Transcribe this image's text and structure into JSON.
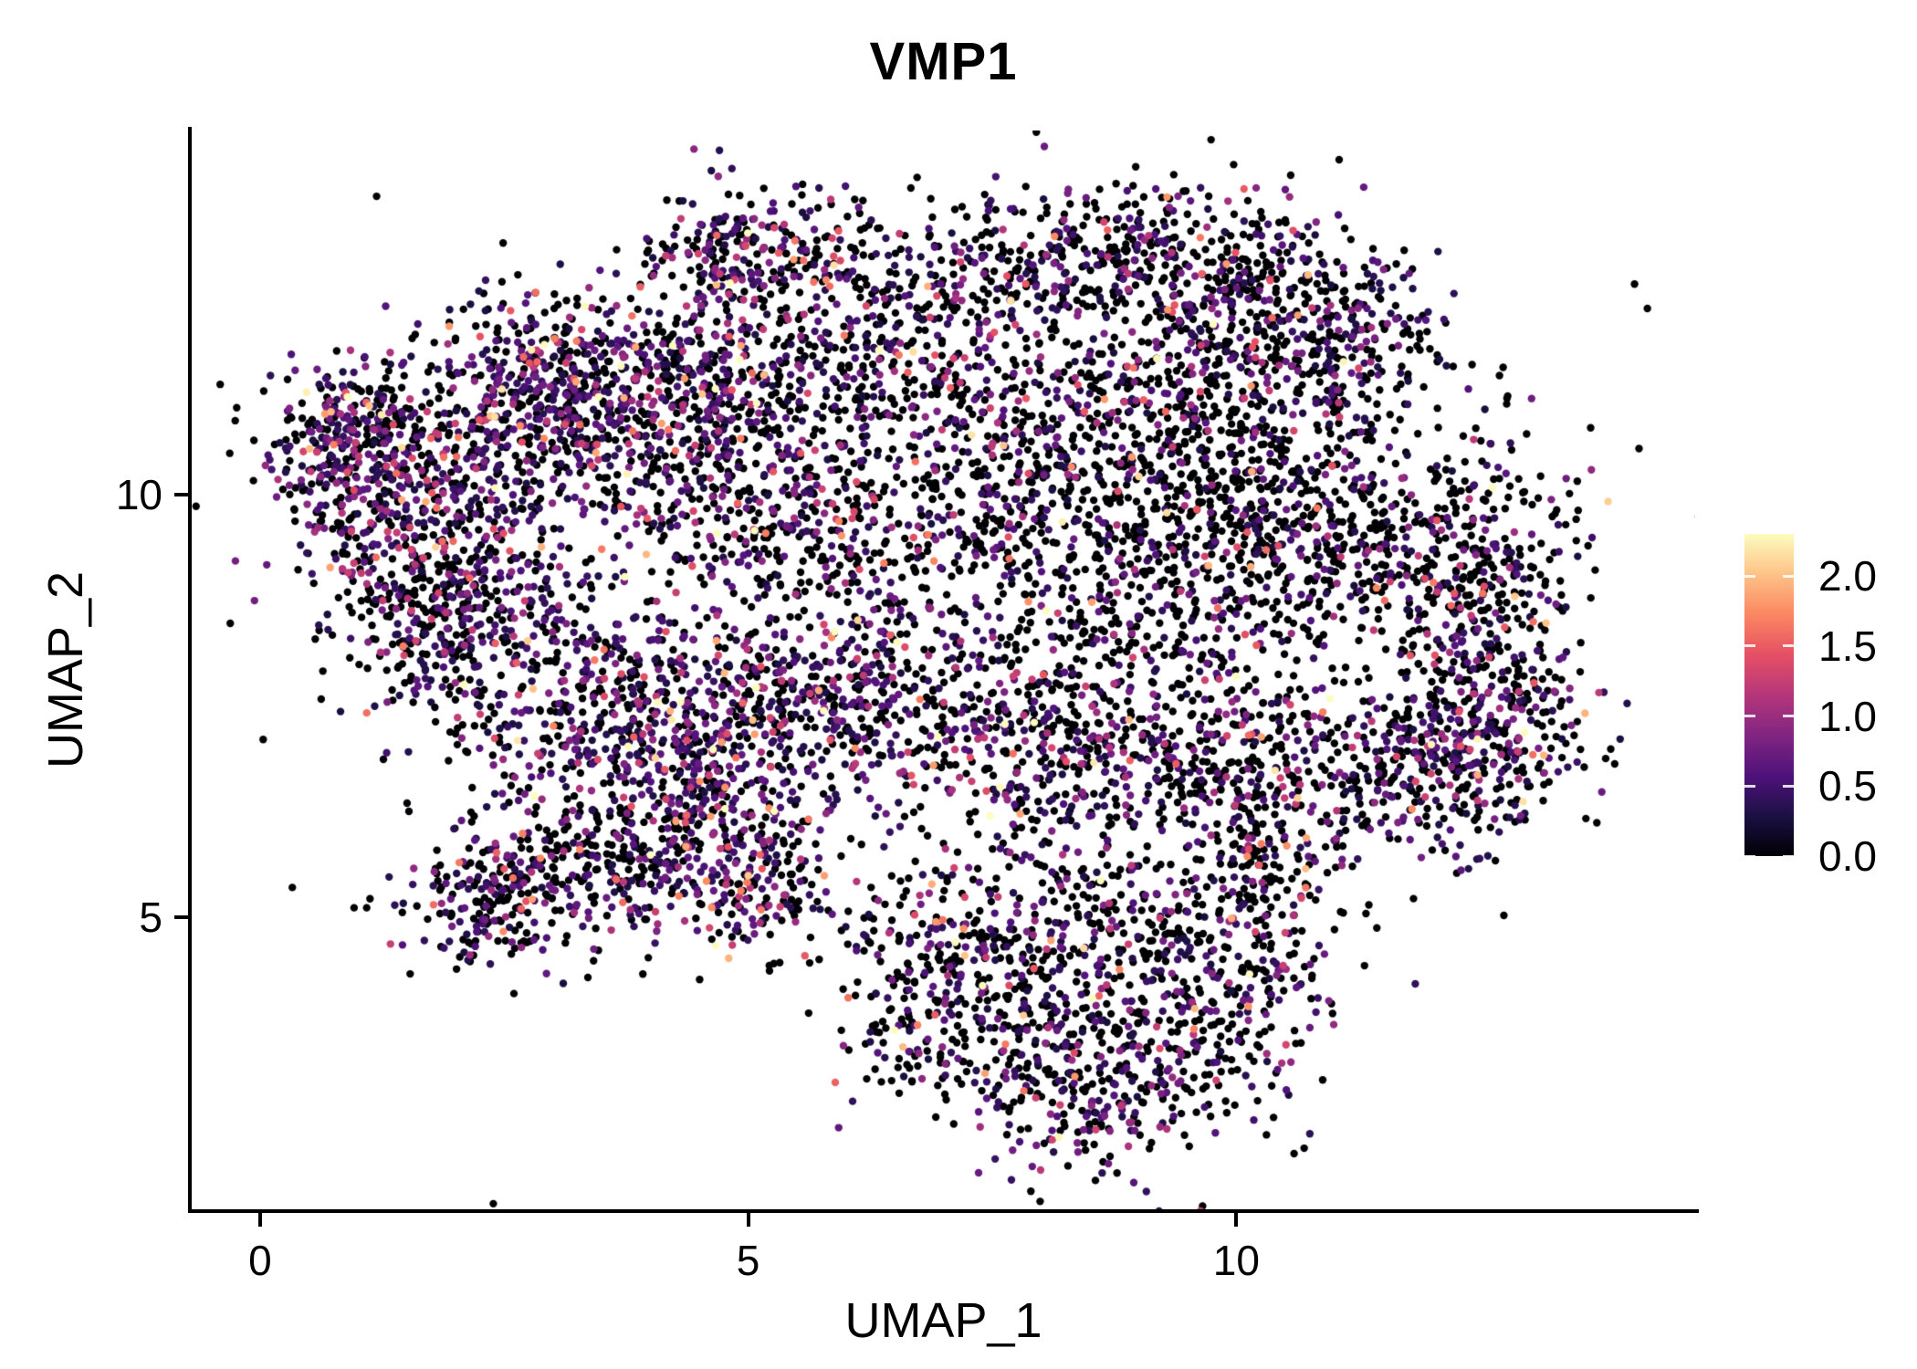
{
  "chart_data": {
    "type": "scatter",
    "title": "VMP1",
    "xlabel": "UMAP_1",
    "ylabel": "UMAP_2",
    "xlim": [
      -0.7,
      14.7
    ],
    "ylim": [
      1.55,
      14.3
    ],
    "x_ticks": [
      0,
      5,
      10
    ],
    "y_ticks": [
      5,
      10
    ],
    "grid": false,
    "legend_position": "right",
    "point_radius": 4.2,
    "seed": 1234,
    "colorbar": {
      "tick_labels": [
        "2.0",
        "1.5",
        "1.0",
        "0.5",
        "0.0"
      ],
      "tick_values": [
        2.0,
        1.5,
        1.0,
        0.5,
        0.0
      ],
      "vmin": 0.0,
      "vmax": 2.3,
      "colormap": "magma",
      "stops": [
        [
          0,
          "#000004"
        ],
        [
          0.125,
          "#1c1044"
        ],
        [
          0.25,
          "#4f127b"
        ],
        [
          0.375,
          "#812581"
        ],
        [
          0.5,
          "#b5367a"
        ],
        [
          0.625,
          "#e55064"
        ],
        [
          0.75,
          "#fb8761"
        ],
        [
          0.875,
          "#fec287"
        ],
        [
          1,
          "#fcfdbf"
        ]
      ]
    },
    "expression_model": {
      "offset": 0.25,
      "mean": 0.45,
      "max": 2.3
    },
    "cluster_fields": [
      "cx",
      "cy",
      "sx",
      "sy",
      "n",
      "p_zero"
    ],
    "clusters": [
      [
        0.85,
        10.6,
        0.4,
        0.5,
        320,
        0.45
      ],
      [
        1.5,
        9.5,
        0.55,
        0.65,
        260,
        0.5
      ],
      [
        1.6,
        8.3,
        0.5,
        0.6,
        130,
        0.55
      ],
      [
        2.3,
        10.4,
        0.7,
        0.55,
        260,
        0.5
      ],
      [
        2.9,
        11.3,
        0.6,
        0.55,
        330,
        0.45
      ],
      [
        3.9,
        11.1,
        0.8,
        0.6,
        300,
        0.5
      ],
      [
        5.0,
        11.3,
        0.7,
        0.55,
        280,
        0.5
      ],
      [
        4.8,
        12.9,
        0.4,
        0.45,
        190,
        0.45
      ],
      [
        5.9,
        12.7,
        0.45,
        0.4,
        110,
        0.55
      ],
      [
        6.6,
        11.7,
        0.8,
        0.55,
        230,
        0.55
      ],
      [
        7.6,
        12.7,
        0.55,
        0.45,
        150,
        0.6
      ],
      [
        8.9,
        12.8,
        0.65,
        0.45,
        240,
        0.65
      ],
      [
        10.1,
        12.4,
        0.75,
        0.55,
        300,
        0.55
      ],
      [
        11.1,
        11.7,
        0.5,
        0.55,
        200,
        0.55
      ],
      [
        9.5,
        11.3,
        0.8,
        0.5,
        240,
        0.7
      ],
      [
        9.6,
        10.2,
        1.0,
        0.7,
        380,
        0.75
      ],
      [
        10.8,
        9.4,
        0.8,
        0.75,
        340,
        0.75
      ],
      [
        9.0,
        8.8,
        0.95,
        0.7,
        340,
        0.7
      ],
      [
        12.4,
        9.2,
        0.55,
        0.85,
        340,
        0.65
      ],
      [
        12.6,
        7.4,
        0.5,
        0.7,
        300,
        0.5
      ],
      [
        11.8,
        6.8,
        0.7,
        0.55,
        270,
        0.55
      ],
      [
        4.9,
        9.9,
        0.85,
        0.65,
        290,
        0.55
      ],
      [
        6.4,
        9.4,
        0.85,
        0.75,
        270,
        0.6
      ],
      [
        7.8,
        10.4,
        0.7,
        0.65,
        220,
        0.6
      ],
      [
        2.4,
        8.7,
        0.55,
        0.55,
        190,
        0.5
      ],
      [
        3.3,
        7.5,
        0.75,
        0.75,
        340,
        0.45
      ],
      [
        4.6,
        6.9,
        0.75,
        0.75,
        340,
        0.4
      ],
      [
        5.6,
        7.7,
        0.65,
        0.55,
        250,
        0.5
      ],
      [
        7.2,
        7.3,
        0.85,
        0.6,
        270,
        0.55
      ],
      [
        8.5,
        6.9,
        0.75,
        0.6,
        250,
        0.55
      ],
      [
        10.0,
        6.9,
        0.75,
        0.55,
        250,
        0.6
      ],
      [
        2.2,
        5.1,
        0.45,
        0.35,
        150,
        0.6
      ],
      [
        3.2,
        5.6,
        0.6,
        0.5,
        200,
        0.55
      ],
      [
        4.3,
        5.9,
        0.6,
        0.5,
        200,
        0.5
      ],
      [
        5.1,
        5.3,
        0.4,
        0.4,
        120,
        0.5
      ],
      [
        7.4,
        4.8,
        0.75,
        0.65,
        240,
        0.6
      ],
      [
        8.8,
        4.6,
        0.85,
        0.75,
        290,
        0.6
      ],
      [
        8.5,
        3.0,
        0.65,
        0.55,
        300,
        0.5
      ],
      [
        9.9,
        4.0,
        0.55,
        0.65,
        200,
        0.6
      ],
      [
        10.3,
        5.6,
        0.45,
        0.45,
        150,
        0.6
      ],
      [
        6.9,
        3.9,
        0.5,
        0.6,
        150,
        0.6
      ],
      [
        6.8,
        8.8,
        3.2,
        2.3,
        380,
        0.7
      ]
    ]
  }
}
